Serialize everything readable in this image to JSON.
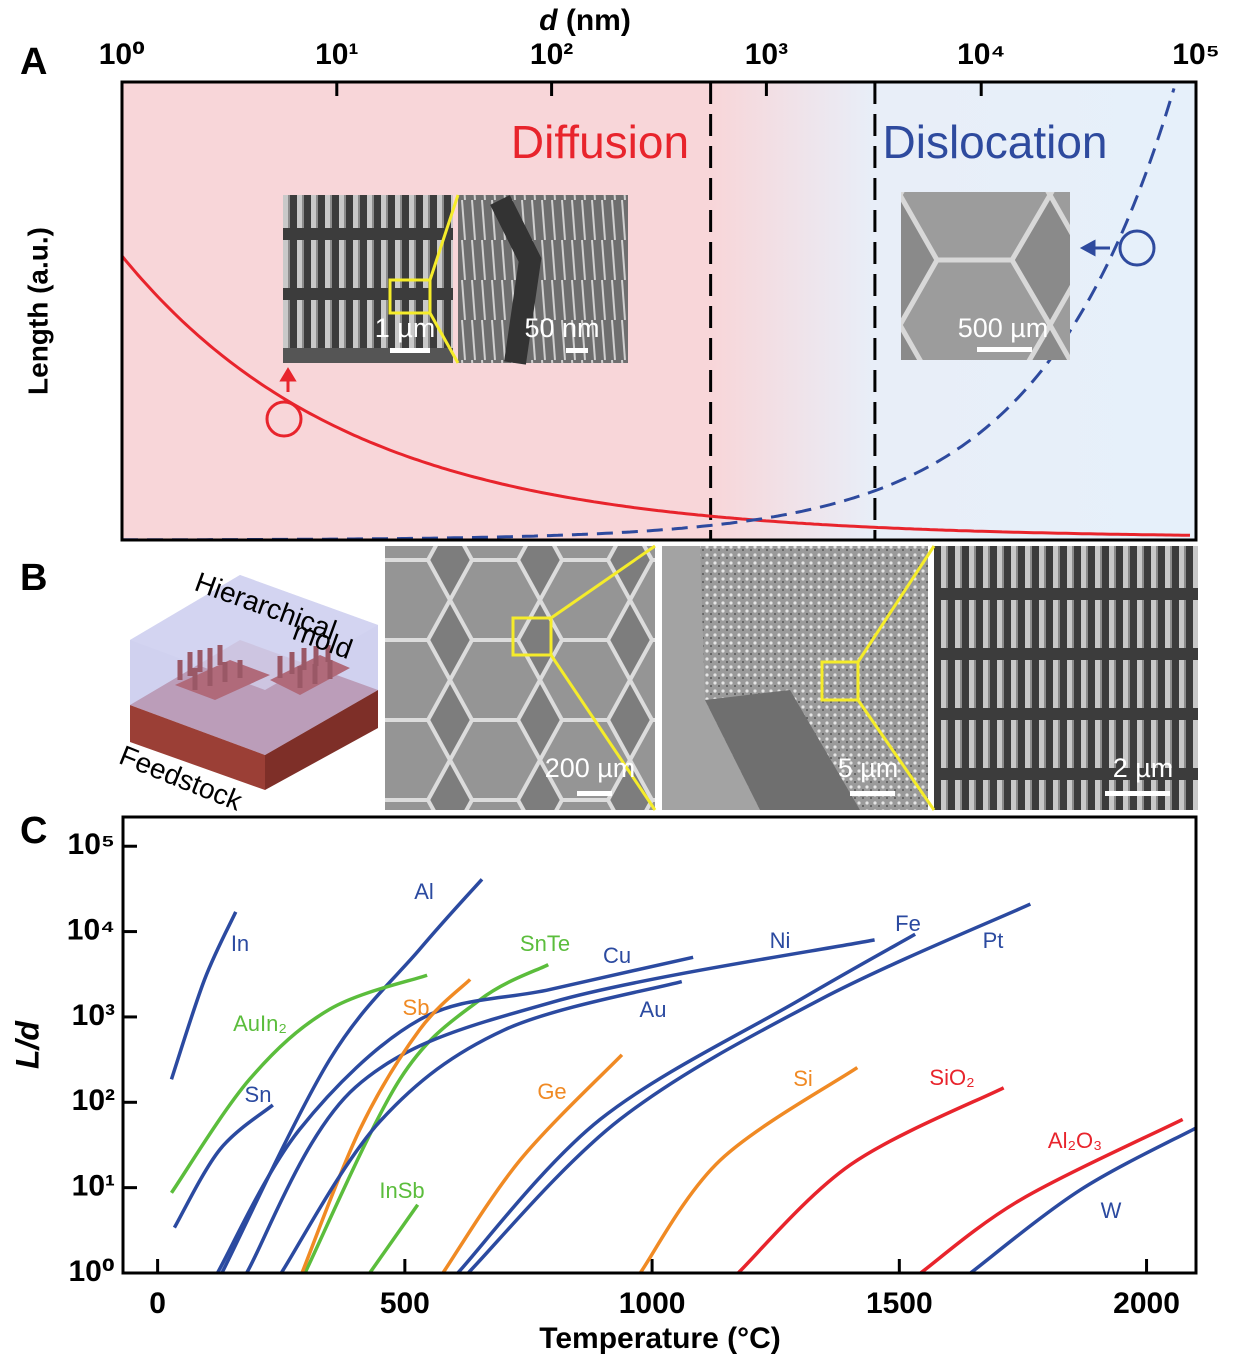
{
  "panel_labels": [
    "A",
    "B",
    "C"
  ],
  "chart_data": [
    {
      "type": "schematic",
      "xlabel": [
        "d",
        "(nm)"
      ],
      "ylabel": "Length (a.u.)",
      "xscale": "log",
      "xlim": [
        1,
        100000
      ],
      "xticks": [
        {
          "value": 1,
          "label": "10⁰"
        },
        {
          "value": 10,
          "label": "10¹"
        },
        {
          "value": 100,
          "label": "10²"
        },
        {
          "value": 1000,
          "label": "10³"
        },
        {
          "value": 10000,
          "label": "10⁴"
        },
        {
          "value": 100000,
          "label": "10⁵"
        }
      ],
      "dividers": [
        550,
        3200
      ],
      "regions": [
        "Diffusion",
        "Dislocation"
      ],
      "region_colors": [
        "#e8242c",
        "#2e4a9e"
      ],
      "scale_bars": [
        "1 µm",
        "50 nm",
        "500 µm"
      ]
    },
    {
      "type": "line",
      "xlabel": "Temperature (°C)",
      "ylabel": "L/d",
      "yscale": "log",
      "xlim": [
        -70,
        2100
      ],
      "ylim": [
        1,
        220000
      ],
      "xticks": [
        0,
        500,
        1000,
        1500,
        2000
      ],
      "yticks": [
        {
          "value": 1,
          "label": "10⁰"
        },
        {
          "value": 10,
          "label": "10¹"
        },
        {
          "value": 100,
          "label": "10²"
        },
        {
          "value": 1000,
          "label": "10³"
        },
        {
          "value": 10000,
          "label": "10⁴"
        },
        {
          "value": 100000,
          "label": "10⁵"
        }
      ],
      "series": [
        {
          "name": "In",
          "color": "#2b4aa0",
          "x": [
            28,
            95,
            158
          ],
          "values": [
            186,
            2750,
            17000
          ]
        },
        {
          "name": "Al",
          "color": "#2b4aa0",
          "x": [
            130,
            348,
            530,
            656
          ],
          "values": [
            1,
            316,
            6200,
            41000
          ]
        },
        {
          "name": "SnTe",
          "color": "#5bbd3c",
          "x": [
            298,
            490,
            652,
            790
          ],
          "values": [
            1,
            186,
            1590,
            4100
          ]
        },
        {
          "name": "Cu",
          "color": "#2b4aa0",
          "x": [
            121,
            287,
            530,
            794,
            1083
          ],
          "values": [
            1,
            48,
            930,
            2100,
            5000
          ]
        },
        {
          "name": "Ni",
          "color": "#2b4aa0",
          "x": [
            180,
            400,
            800,
            1450
          ],
          "values": [
            1,
            150,
            1500,
            8000
          ]
        },
        {
          "name": "Fe",
          "color": "#2b4aa0",
          "x": [
            607,
            895,
            1300,
            1532
          ],
          "values": [
            1,
            63,
            1600,
            9300
          ]
        },
        {
          "name": "Pt",
          "color": "#2b4aa0",
          "x": [
            628,
            935,
            1340,
            1765
          ],
          "values": [
            1,
            63,
            1600,
            21000
          ]
        },
        {
          "name": "AuIn₂",
          "color": "#5bbd3c",
          "x": [
            28,
            186,
            348,
            545
          ],
          "values": [
            8.7,
            186,
            1230,
            3080
          ]
        },
        {
          "name": "Sb",
          "color": "#f08a24",
          "x": [
            292,
            409,
            530,
            632
          ],
          "values": [
            1,
            48,
            710,
            2750
          ]
        },
        {
          "name": "Au",
          "color": "#2b4aa0",
          "x": [
            250,
            450,
            700,
            1060
          ],
          "values": [
            1,
            60,
            700,
            2600
          ]
        },
        {
          "name": "Sn",
          "color": "#2b4aa0",
          "x": [
            34,
            126,
            233
          ],
          "values": [
            3.4,
            28,
            93
          ]
        },
        {
          "name": "Ge",
          "color": "#f08a24",
          "x": [
            577,
            733,
            939
          ],
          "values": [
            1,
            21,
            360
          ]
        },
        {
          "name": "Si",
          "color": "#f08a24",
          "x": [
            976,
            1138,
            1415
          ],
          "values": [
            1,
            21,
            255
          ]
        },
        {
          "name": "SiO₂",
          "color": "#e8242c",
          "x": [
            1174,
            1401,
            1711
          ],
          "values": [
            1,
            18.5,
            148
          ]
        },
        {
          "name": "InSb",
          "color": "#5bbd3c",
          "x": [
            429,
            526
          ],
          "values": [
            1,
            6.3
          ]
        },
        {
          "name": "Al₂O₃",
          "color": "#e8242c",
          "x": [
            1543,
            1745,
            2073
          ],
          "values": [
            1,
            7.2,
            63
          ]
        },
        {
          "name": "W",
          "color": "#2b4aa0",
          "x": [
            1644,
            1866,
            2100
          ],
          "values": [
            1,
            9.4,
            50
          ]
        }
      ]
    }
  ],
  "panel_b": {
    "labels": [
      "Hierarchical",
      "mold",
      "Feedstock"
    ],
    "scale_bars": [
      "200 µm",
      "5 µm",
      "2 µm"
    ]
  }
}
